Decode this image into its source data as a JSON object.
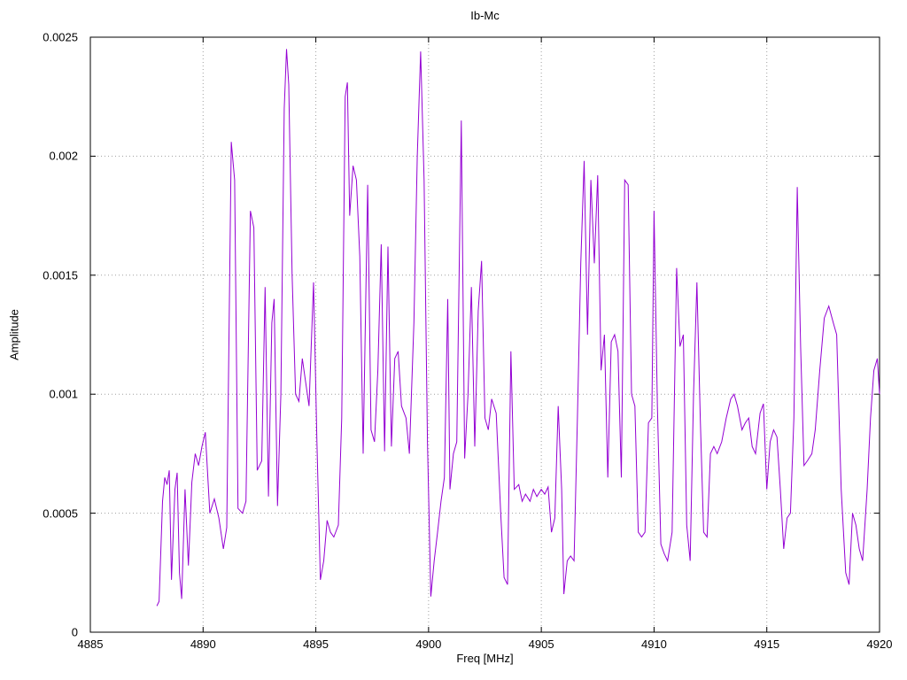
{
  "title": "Ib-Mc",
  "chart_data": {
    "type": "line",
    "title": "Ib-Mc",
    "xlabel": "Freq [MHz]",
    "ylabel": "Amplitude",
    "xlim": [
      4885,
      4920
    ],
    "ylim": [
      0,
      0.0025
    ],
    "x_ticks": [
      4885,
      4890,
      4895,
      4900,
      4905,
      4910,
      4915,
      4920
    ],
    "x_tick_labels": [
      "4885",
      "4890",
      "4895",
      "4900",
      "4905",
      "4910",
      "4915",
      "4920"
    ],
    "y_ticks": [
      0,
      0.0005,
      0.001,
      0.0015,
      0.002,
      0.0025
    ],
    "y_tick_labels": [
      "0",
      "0.0005",
      "0.001",
      "0.0015",
      "0.002",
      "0.0025"
    ],
    "grid": true,
    "grid_color": "#a0a0a0",
    "border_color": "#000000",
    "line_color": "#9400d3",
    "legend": "none",
    "series": [
      {
        "name": "Ib-Mc",
        "points": [
          [
            4887.95,
            0.00011
          ],
          [
            4888.05,
            0.00013
          ],
          [
            4888.2,
            0.00055
          ],
          [
            4888.3,
            0.00065
          ],
          [
            4888.4,
            0.00062
          ],
          [
            4888.5,
            0.00068
          ],
          [
            4888.6,
            0.00022
          ],
          [
            4888.75,
            0.0006
          ],
          [
            4888.85,
            0.00067
          ],
          [
            4888.95,
            0.00025
          ],
          [
            4889.05,
            0.00014
          ],
          [
            4889.2,
            0.0006
          ],
          [
            4889.35,
            0.00028
          ],
          [
            4889.5,
            0.00063
          ],
          [
            4889.65,
            0.00075
          ],
          [
            4889.8,
            0.0007
          ],
          [
            4889.95,
            0.00078
          ],
          [
            4890.1,
            0.00084
          ],
          [
            4890.3,
            0.0005
          ],
          [
            4890.5,
            0.00056
          ],
          [
            4890.7,
            0.00048
          ],
          [
            4890.9,
            0.00035
          ],
          [
            4891.05,
            0.00044
          ],
          [
            4891.25,
            0.00206
          ],
          [
            4891.4,
            0.0019
          ],
          [
            4891.55,
            0.00052
          ],
          [
            4891.75,
            0.0005
          ],
          [
            4891.9,
            0.00055
          ],
          [
            4892.1,
            0.00177
          ],
          [
            4892.25,
            0.0017
          ],
          [
            4892.4,
            0.00068
          ],
          [
            4892.6,
            0.00072
          ],
          [
            4892.75,
            0.00145
          ],
          [
            4892.9,
            0.00057
          ],
          [
            4893.05,
            0.0013
          ],
          [
            4893.15,
            0.0014
          ],
          [
            4893.3,
            0.00053
          ],
          [
            4893.45,
            0.001
          ],
          [
            4893.6,
            0.0022
          ],
          [
            4893.7,
            0.00245
          ],
          [
            4893.8,
            0.0023
          ],
          [
            4893.95,
            0.0015
          ],
          [
            4894.1,
            0.001
          ],
          [
            4894.25,
            0.00097
          ],
          [
            4894.4,
            0.00115
          ],
          [
            4894.55,
            0.00105
          ],
          [
            4894.7,
            0.00095
          ],
          [
            4894.9,
            0.00147
          ],
          [
            4895.05,
            0.0008
          ],
          [
            4895.2,
            0.00022
          ],
          [
            4895.35,
            0.0003
          ],
          [
            4895.5,
            0.00047
          ],
          [
            4895.65,
            0.00042
          ],
          [
            4895.8,
            0.0004
          ],
          [
            4896.0,
            0.00045
          ],
          [
            4896.15,
            0.0009
          ],
          [
            4896.3,
            0.00225
          ],
          [
            4896.4,
            0.00231
          ],
          [
            4896.5,
            0.00175
          ],
          [
            4896.65,
            0.00196
          ],
          [
            4896.8,
            0.0019
          ],
          [
            4896.95,
            0.00158
          ],
          [
            4897.1,
            0.00075
          ],
          [
            4897.3,
            0.00188
          ],
          [
            4897.45,
            0.00085
          ],
          [
            4897.6,
            0.0008
          ],
          [
            4897.75,
            0.0011
          ],
          [
            4897.9,
            0.00163
          ],
          [
            4898.05,
            0.00076
          ],
          [
            4898.2,
            0.00162
          ],
          [
            4898.35,
            0.00078
          ],
          [
            4898.5,
            0.00115
          ],
          [
            4898.65,
            0.00118
          ],
          [
            4898.8,
            0.00095
          ],
          [
            4899.0,
            0.0009
          ],
          [
            4899.15,
            0.00075
          ],
          [
            4899.35,
            0.0013
          ],
          [
            4899.5,
            0.002
          ],
          [
            4899.65,
            0.00244
          ],
          [
            4899.8,
            0.0019
          ],
          [
            4899.95,
            0.0008
          ],
          [
            4900.1,
            0.00015
          ],
          [
            4900.25,
            0.0003
          ],
          [
            4900.4,
            0.00042
          ],
          [
            4900.55,
            0.00055
          ],
          [
            4900.7,
            0.00065
          ],
          [
            4900.85,
            0.0014
          ],
          [
            4900.95,
            0.0006
          ],
          [
            4901.1,
            0.00075
          ],
          [
            4901.25,
            0.0008
          ],
          [
            4901.45,
            0.00215
          ],
          [
            4901.6,
            0.00073
          ],
          [
            4901.75,
            0.001
          ],
          [
            4901.9,
            0.00145
          ],
          [
            4902.05,
            0.00078
          ],
          [
            4902.2,
            0.00135
          ],
          [
            4902.35,
            0.00156
          ],
          [
            4902.5,
            0.0009
          ],
          [
            4902.65,
            0.00085
          ],
          [
            4902.8,
            0.00098
          ],
          [
            4903.0,
            0.00092
          ],
          [
            4903.2,
            0.0005
          ],
          [
            4903.35,
            0.00023
          ],
          [
            4903.5,
            0.0002
          ],
          [
            4903.65,
            0.00118
          ],
          [
            4903.8,
            0.0006
          ],
          [
            4904.0,
            0.00062
          ],
          [
            4904.15,
            0.00055
          ],
          [
            4904.3,
            0.00058
          ],
          [
            4904.5,
            0.00055
          ],
          [
            4904.65,
            0.0006
          ],
          [
            4904.8,
            0.00057
          ],
          [
            4905.0,
            0.0006
          ],
          [
            4905.15,
            0.00058
          ],
          [
            4905.3,
            0.00061
          ],
          [
            4905.45,
            0.00042
          ],
          [
            4905.6,
            0.00048
          ],
          [
            4905.75,
            0.00095
          ],
          [
            4905.9,
            0.0006
          ],
          [
            4906.0,
            0.00016
          ],
          [
            4906.15,
            0.0003
          ],
          [
            4906.3,
            0.00032
          ],
          [
            4906.45,
            0.0003
          ],
          [
            4906.6,
            0.0009
          ],
          [
            4906.75,
            0.00155
          ],
          [
            4906.9,
            0.00198
          ],
          [
            4907.05,
            0.00125
          ],
          [
            4907.2,
            0.0019
          ],
          [
            4907.35,
            0.00155
          ],
          [
            4907.5,
            0.00192
          ],
          [
            4907.65,
            0.0011
          ],
          [
            4907.8,
            0.00125
          ],
          [
            4907.95,
            0.00065
          ],
          [
            4908.1,
            0.00122
          ],
          [
            4908.25,
            0.00125
          ],
          [
            4908.4,
            0.00118
          ],
          [
            4908.55,
            0.00065
          ],
          [
            4908.7,
            0.0019
          ],
          [
            4908.85,
            0.00188
          ],
          [
            4909.0,
            0.001
          ],
          [
            4909.15,
            0.00095
          ],
          [
            4909.3,
            0.00042
          ],
          [
            4909.45,
            0.0004
          ],
          [
            4909.6,
            0.00042
          ],
          [
            4909.75,
            0.00088
          ],
          [
            4909.9,
            0.0009
          ],
          [
            4910.0,
            0.00177
          ],
          [
            4910.15,
            0.00095
          ],
          [
            4910.3,
            0.00037
          ],
          [
            4910.45,
            0.00033
          ],
          [
            4910.6,
            0.0003
          ],
          [
            4910.8,
            0.00042
          ],
          [
            4911.0,
            0.00153
          ],
          [
            4911.15,
            0.0012
          ],
          [
            4911.3,
            0.00125
          ],
          [
            4911.45,
            0.00045
          ],
          [
            4911.6,
            0.0003
          ],
          [
            4911.75,
            0.001
          ],
          [
            4911.9,
            0.00147
          ],
          [
            4912.05,
            0.0009
          ],
          [
            4912.2,
            0.00042
          ],
          [
            4912.35,
            0.0004
          ],
          [
            4912.5,
            0.00075
          ],
          [
            4912.65,
            0.00078
          ],
          [
            4912.8,
            0.00075
          ],
          [
            4913.0,
            0.0008
          ],
          [
            4913.2,
            0.0009
          ],
          [
            4913.4,
            0.00098
          ],
          [
            4913.55,
            0.001
          ],
          [
            4913.7,
            0.00095
          ],
          [
            4913.9,
            0.00085
          ],
          [
            4914.05,
            0.00088
          ],
          [
            4914.2,
            0.0009
          ],
          [
            4914.35,
            0.00078
          ],
          [
            4914.5,
            0.00075
          ],
          [
            4914.7,
            0.00092
          ],
          [
            4914.85,
            0.00096
          ],
          [
            4915.0,
            0.0006
          ],
          [
            4915.15,
            0.0008
          ],
          [
            4915.3,
            0.00085
          ],
          [
            4915.45,
            0.00082
          ],
          [
            4915.6,
            0.0006
          ],
          [
            4915.75,
            0.00035
          ],
          [
            4915.9,
            0.00048
          ],
          [
            4916.05,
            0.0005
          ],
          [
            4916.2,
            0.0009
          ],
          [
            4916.35,
            0.00187
          ],
          [
            4916.5,
            0.0012
          ],
          [
            4916.65,
            0.0007
          ],
          [
            4916.8,
            0.00072
          ],
          [
            4917.0,
            0.00075
          ],
          [
            4917.15,
            0.00085
          ],
          [
            4917.35,
            0.0011
          ],
          [
            4917.55,
            0.00132
          ],
          [
            4917.75,
            0.00137
          ],
          [
            4917.95,
            0.0013
          ],
          [
            4918.1,
            0.00125
          ],
          [
            4918.3,
            0.0006
          ],
          [
            4918.5,
            0.00025
          ],
          [
            4918.65,
            0.0002
          ],
          [
            4918.8,
            0.0005
          ],
          [
            4918.95,
            0.00045
          ],
          [
            4919.1,
            0.00035
          ],
          [
            4919.25,
            0.0003
          ],
          [
            4919.45,
            0.0006
          ],
          [
            4919.6,
            0.0009
          ],
          [
            4919.75,
            0.0011
          ],
          [
            4919.9,
            0.00115
          ],
          [
            4920.0,
            0.001
          ]
        ]
      }
    ]
  }
}
